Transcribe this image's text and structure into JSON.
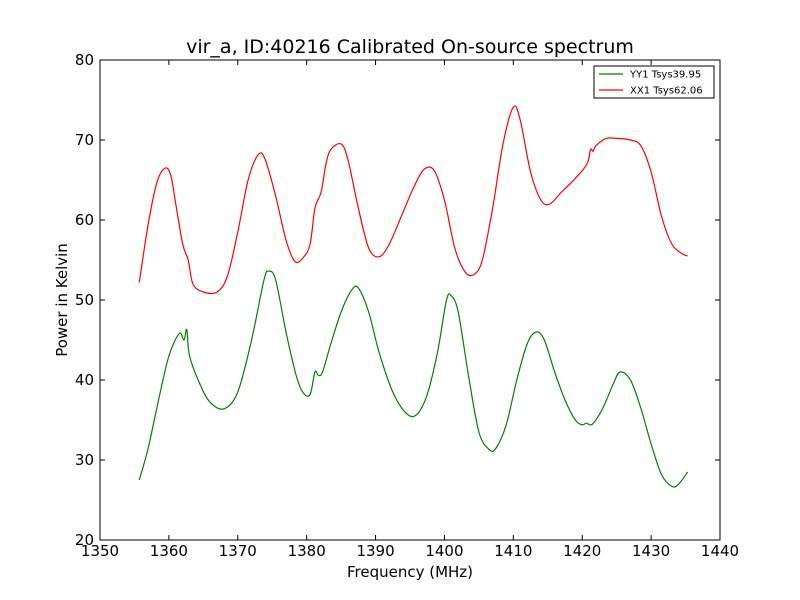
{
  "chart_data": {
    "type": "line",
    "title": "vir_a, ID:40216 Calibrated On-source spectrum",
    "xlabel": "Frequency (MHz)",
    "ylabel": "Power in Kelvin",
    "xlim": [
      1350,
      1440
    ],
    "ylim": [
      20,
      80
    ],
    "xticks": [
      1350,
      1360,
      1370,
      1380,
      1390,
      1400,
      1410,
      1420,
      1430,
      1440
    ],
    "yticks": [
      20,
      30,
      40,
      50,
      60,
      70,
      80
    ],
    "grid": false,
    "legend_position": "top-right",
    "series": [
      {
        "name": "YY1 Tsys39.95",
        "color": "#008000",
        "x": [
          1355.7,
          1357,
          1358.5,
          1360,
          1361.5,
          1362.2,
          1362.6,
          1363,
          1364.5,
          1366,
          1368,
          1370,
          1372,
          1373.8,
          1374.5,
          1375.5,
          1377,
          1378.5,
          1379.5,
          1380.5,
          1381.2,
          1381.7,
          1382.3,
          1383.5,
          1385,
          1386.5,
          1387.5,
          1389,
          1390.5,
          1392.5,
          1394.5,
          1396,
          1397.5,
          1399,
          1400.3,
          1401,
          1402,
          1403.5,
          1405,
          1406.5,
          1407.5,
          1409,
          1410.5,
          1412,
          1413.3,
          1414.5,
          1416,
          1417.5,
          1419,
          1420,
          1420.6,
          1421.5,
          1423,
          1424.5,
          1425.5,
          1427,
          1428.5,
          1430,
          1431.5,
          1433,
          1434,
          1435.3
        ],
        "y": [
          27.5,
          31.5,
          37.5,
          43,
          45.8,
          45,
          46.3,
          43,
          39.5,
          37.2,
          36.4,
          38.5,
          45,
          52.5,
          53.6,
          52.5,
          46,
          40.5,
          38.4,
          38.2,
          41,
          40.6,
          41,
          44.5,
          48.5,
          51.2,
          51.5,
          48.5,
          43.5,
          38.5,
          35.8,
          35.7,
          38.2,
          43.5,
          50,
          50.5,
          48.5,
          40.5,
          33.5,
          31.3,
          31.5,
          34.5,
          40,
          44.5,
          46,
          45,
          41,
          37.5,
          35,
          34.4,
          34.6,
          34.5,
          36.5,
          39.5,
          41,
          40,
          36.5,
          32,
          28.2,
          26.7,
          27,
          28.5
        ]
      },
      {
        "name": "XX1 Tsys62.06",
        "color": "#ff0000",
        "x": [
          1355.7,
          1357,
          1358.3,
          1359.5,
          1360.3,
          1361,
          1362,
          1362.8,
          1363.5,
          1365,
          1367,
          1368.5,
          1370,
          1371.5,
          1373,
          1374,
          1375.5,
          1377,
          1378.3,
          1379.5,
          1380.5,
          1381.2,
          1382.1,
          1382.8,
          1383.5,
          1385,
          1386,
          1387.5,
          1389,
          1390.5,
          1392,
          1394,
          1395.5,
          1397,
          1398.5,
          1400,
          1401.5,
          1403,
          1404.3,
          1405.5,
          1407,
          1408.5,
          1410,
          1411,
          1412.5,
          1414,
          1415.3,
          1417,
          1419,
          1420.7,
          1421.2,
          1421.6,
          1422,
          1423.5,
          1425,
          1427,
          1428.5,
          1430,
          1431.5,
          1433,
          1434.5,
          1435.3
        ],
        "y": [
          52.2,
          59.5,
          64.8,
          66.5,
          65.5,
          62,
          57,
          55,
          52,
          51,
          51,
          53,
          58.5,
          65,
          68.2,
          67.5,
          63,
          57.5,
          54.8,
          55.3,
          57,
          61.5,
          63.5,
          67,
          68.8,
          69.5,
          67.5,
          61.5,
          56.5,
          55.4,
          57,
          61,
          64,
          66.3,
          66.2,
          62.5,
          56.5,
          53.5,
          53.2,
          55,
          61.5,
          69.5,
          74.1,
          72.5,
          66,
          62.5,
          62,
          63.5,
          65.2,
          67,
          68.8,
          68.6,
          69.3,
          70.2,
          70.2,
          70,
          69.3,
          66,
          60.5,
          57,
          55.8,
          55.5
        ]
      }
    ]
  }
}
